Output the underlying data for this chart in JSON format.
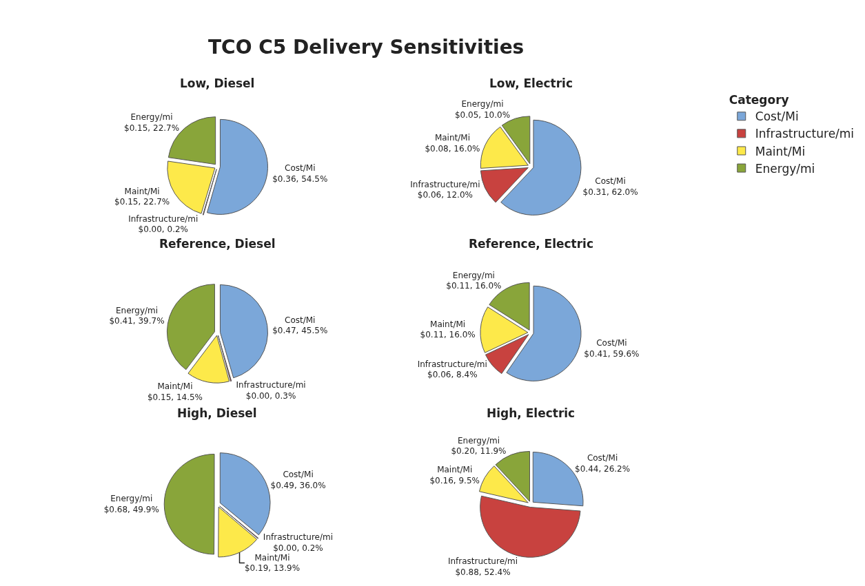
{
  "chart_data": [
    {
      "type": "pie",
      "title": "Low, Diesel",
      "annotations": [
        "TCO C5 Delivery Sensitivities"
      ],
      "legend": "top right",
      "legend_title": "Category",
      "categories": [
        "Cost/Mi",
        "Infrastructure/mi",
        "Maint/Mi",
        "Energy/mi"
      ],
      "values": [
        54.5,
        0.2,
        22.7,
        22.7
      ],
      "value_labels": [
        "$0.36, 54.5%",
        "$0.00, 0.2%",
        "$0.15, 22.7%",
        "$0.15, 22.7%"
      ],
      "colors": [
        "#7ba7d9",
        "#c8423f",
        "#fde94a",
        "#89a53a"
      ]
    },
    {
      "type": "pie",
      "title": "Low, Electric",
      "categories": [
        "Cost/Mi",
        "Infrastructure/mi",
        "Maint/Mi",
        "Energy/mi"
      ],
      "values": [
        62.0,
        12.0,
        16.0,
        10.0
      ],
      "value_labels": [
        "$0.31, 62.0%",
        "$0.06, 12.0%",
        "$0.08, 16.0%",
        "$0.05, 10.0%"
      ],
      "colors": [
        "#7ba7d9",
        "#c8423f",
        "#fde94a",
        "#89a53a"
      ]
    },
    {
      "type": "pie",
      "title": "Reference, Diesel",
      "categories": [
        "Cost/Mi",
        "Infrastructure/mi",
        "Maint/Mi",
        "Energy/mi"
      ],
      "values": [
        45.5,
        0.3,
        14.5,
        39.7
      ],
      "value_labels": [
        "$0.47, 45.5%",
        "$0.00, 0.3%",
        "$0.15, 14.5%",
        "$0.41, 39.7%"
      ],
      "colors": [
        "#7ba7d9",
        "#c8423f",
        "#fde94a",
        "#89a53a"
      ]
    },
    {
      "type": "pie",
      "title": "Reference, Electric",
      "categories": [
        "Cost/Mi",
        "Infrastructure/mi",
        "Maint/Mi",
        "Energy/mi"
      ],
      "values": [
        59.6,
        8.4,
        16.0,
        16.0
      ],
      "value_labels": [
        "$0.41, 59.6%",
        "$0.06, 8.4%",
        "$0.11, 16.0%",
        "$0.11, 16.0%"
      ],
      "colors": [
        "#7ba7d9",
        "#c8423f",
        "#fde94a",
        "#89a53a"
      ]
    },
    {
      "type": "pie",
      "title": "High, Diesel",
      "categories": [
        "Cost/Mi",
        "Infrastructure/mi",
        "Maint/Mi",
        "Energy/mi"
      ],
      "values": [
        36.0,
        0.2,
        13.9,
        49.9
      ],
      "value_labels": [
        "$0.49, 36.0%",
        "$0.00, 0.2%",
        "$0.19, 13.9%",
        "$0.68, 49.9%"
      ],
      "colors": [
        "#7ba7d9",
        "#c8423f",
        "#fde94a",
        "#89a53a"
      ]
    },
    {
      "type": "pie",
      "title": "High, Electric",
      "categories": [
        "Cost/Mi",
        "Infrastructure/mi",
        "Maint/Mi",
        "Energy/mi"
      ],
      "values": [
        26.2,
        52.4,
        9.5,
        11.9
      ],
      "value_labels": [
        "$0.44, 26.2%",
        "$0.88, 52.4%",
        "$0.16, 9.5%",
        "$0.20, 11.9%"
      ],
      "colors": [
        "#7ba7d9",
        "#c8423f",
        "#fde94a",
        "#89a53a"
      ]
    }
  ]
}
